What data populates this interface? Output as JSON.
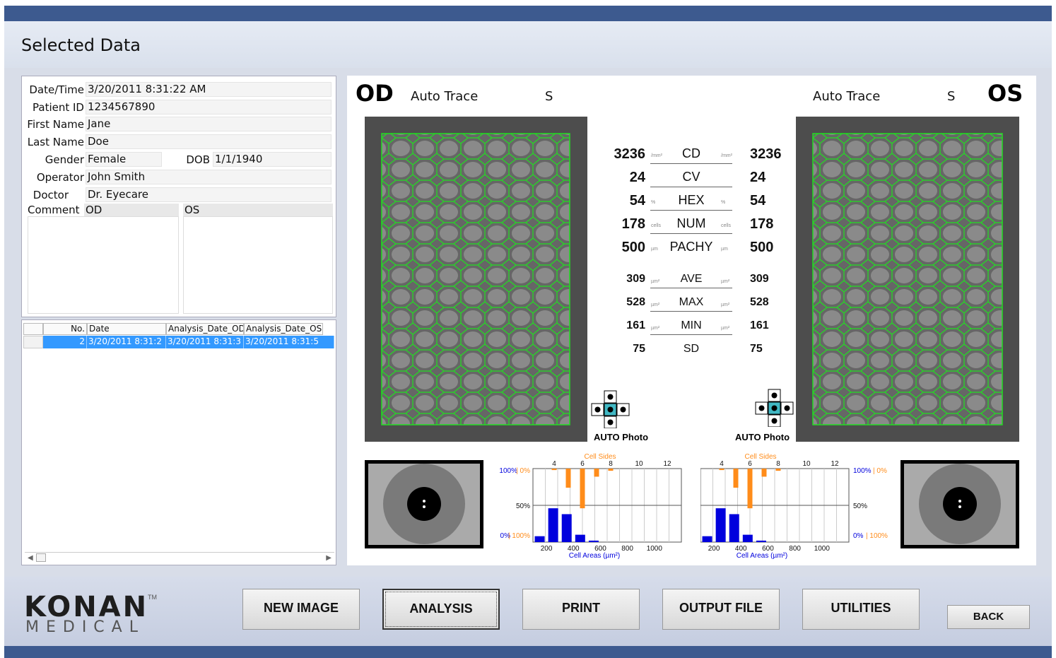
{
  "title": "Selected Data",
  "patient": {
    "labels": {
      "datetime": "Date/Time",
      "patient_id": "Patient ID",
      "first_name": "First Name",
      "last_name": "Last Name",
      "gender": "Gender",
      "dob": "DOB",
      "operator": "Operator",
      "doctor": "Doctor",
      "comment": "Comment",
      "comment_od": "OD",
      "comment_os": "OS"
    },
    "datetime": "3/20/2011 8:31:22 AM",
    "patient_id": "1234567890",
    "first_name": "Jane",
    "last_name": "Doe",
    "gender": "Female",
    "dob": "1/1/1940",
    "operator": "John Smith",
    "doctor": "Dr. Eyecare"
  },
  "grid": {
    "headers": [
      "No.",
      "Date",
      "Analysis_Date_OD",
      "Analysis_Date_OS"
    ],
    "rows": [
      [
        "2",
        "3/20/2011 8:31:2",
        "3/20/2011 8:31:3",
        "3/20/2011 8:31:5"
      ]
    ]
  },
  "panel": {
    "od_label": "OD",
    "os_label": "OS",
    "auto_trace": "Auto Trace",
    "s": "S",
    "auto_photo": "AUTO Photo",
    "stats": [
      {
        "name": "CD",
        "od": "3236",
        "os": "3236",
        "unit": "/mm²"
      },
      {
        "name": "CV",
        "od": "24",
        "os": "24",
        "unit": ""
      },
      {
        "name": "HEX",
        "od": "54",
        "os": "54",
        "unit": "%"
      },
      {
        "name": "NUM",
        "od": "178",
        "os": "178",
        "unit": "cells"
      },
      {
        "name": "PACHY",
        "od": "500",
        "os": "500",
        "unit": "µm"
      },
      {
        "name": "AVE",
        "od": "309",
        "os": "309",
        "unit": "µm²"
      },
      {
        "name": "MAX",
        "od": "528",
        "os": "528",
        "unit": "µm²"
      },
      {
        "name": "MIN",
        "od": "161",
        "os": "161",
        "unit": "µm²"
      },
      {
        "name": "SD",
        "od": "75",
        "os": "75",
        "unit": ""
      }
    ]
  },
  "chart_data": [
    {
      "type": "bar",
      "side": "OD",
      "title": "Cell Sides",
      "xlabel": "Cell Areas (µm²)",
      "area_ticks": [
        "200",
        "400",
        "600",
        "800",
        "1000"
      ],
      "side_ticks": [
        "4",
        "6",
        "8",
        "10",
        "12"
      ],
      "y_labels": {
        "top_blue": "100%",
        "top_orange": "0%",
        "mid": "50%",
        "bottom_blue": "0%",
        "bottom_orange": "100%"
      },
      "areas": [
        {
          "x": 150,
          "pct": 0.08
        },
        {
          "x": 250,
          "pct": 0.46
        },
        {
          "x": 350,
          "pct": 0.38
        },
        {
          "x": 450,
          "pct": 0.1
        },
        {
          "x": 550,
          "pct": 0.02
        }
      ],
      "sides": [
        {
          "x": 4,
          "pct": 0.02
        },
        {
          "x": 5,
          "pct": 0.26
        },
        {
          "x": 6,
          "pct": 0.54
        },
        {
          "x": 7,
          "pct": 0.11
        },
        {
          "x": 8,
          "pct": 0.03
        }
      ]
    },
    {
      "type": "bar",
      "side": "OS",
      "title": "Cell Sides",
      "xlabel": "Cell Areas (µm²)",
      "area_ticks": [
        "200",
        "400",
        "600",
        "800",
        "1000"
      ],
      "side_ticks": [
        "4",
        "6",
        "8",
        "10",
        "12"
      ],
      "y_labels": {
        "top_blue": "100%",
        "top_orange": "0%",
        "mid": "50%",
        "bottom_blue": "0%",
        "bottom_orange": "100%"
      },
      "areas": [
        {
          "x": 150,
          "pct": 0.08
        },
        {
          "x": 250,
          "pct": 0.46
        },
        {
          "x": 350,
          "pct": 0.38
        },
        {
          "x": 450,
          "pct": 0.1
        },
        {
          "x": 550,
          "pct": 0.02
        }
      ],
      "sides": [
        {
          "x": 4,
          "pct": 0.02
        },
        {
          "x": 5,
          "pct": 0.26
        },
        {
          "x": 6,
          "pct": 0.54
        },
        {
          "x": 7,
          "pct": 0.11
        },
        {
          "x": 8,
          "pct": 0.03
        }
      ]
    }
  ],
  "colors": {
    "blue": "#0000dd",
    "orange": "#ff8c1a",
    "trace": "#22dd22",
    "header": "#3d5a8f",
    "selection": "#3399ff"
  },
  "buttons": {
    "new_image": "NEW IMAGE",
    "analysis": "ANALYSIS",
    "print": "PRINT",
    "output_file": "OUTPUT FILE",
    "utilities": "UTILITIES",
    "back": "BACK"
  },
  "logo": {
    "brand": "KONAN",
    "sub": "MEDICAL",
    "tm": "TM"
  }
}
